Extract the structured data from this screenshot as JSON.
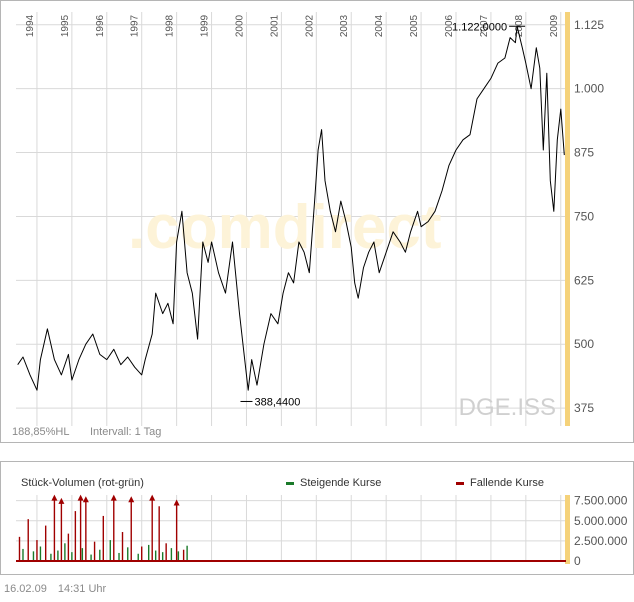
{
  "colors": {
    "price_line": "#000000",
    "grid": "#d9d9d9",
    "highlight": "#f5d27a",
    "volume_up": "#1a7a2a",
    "volume_down": "#a00000",
    "watermark": "#d0d0d0",
    "comdirect_watermark": "#fdf3d8"
  },
  "chart_data": [
    {
      "type": "line",
      "ticker": "DGE.ISS",
      "watermark": ".comdirect",
      "x_tick_labels": [
        "1994",
        "1995",
        "1996",
        "1997",
        "1998",
        "1999",
        "2000",
        "2001",
        "2002",
        "2003",
        "2004",
        "2005",
        "2006",
        "2007",
        "2008",
        "2009"
      ],
      "y_ticks": [
        375,
        500,
        625,
        750,
        875,
        1000,
        1125
      ],
      "y_tick_labels": [
        "375",
        "500",
        "625",
        "750",
        "875",
        "1.000",
        "1.125"
      ],
      "ylim": [
        340,
        1150
      ],
      "xlim": [
        1993.4,
        2009.15
      ],
      "info_left": "188,85%HL",
      "info_interval": "Intervall: 1 Tag",
      "annotations": [
        {
          "label": "1.122,0000",
          "x": 2007.75,
          "y": 1122,
          "kind": "high"
        },
        {
          "label": "388,4400",
          "x": 2000.0,
          "y": 388,
          "kind": "low"
        }
      ],
      "series": [
        {
          "x": [
            1993.45,
            1993.6,
            1993.8,
            1994.0,
            1994.1,
            1994.3,
            1994.5,
            1994.7,
            1994.9,
            1995.0,
            1995.2,
            1995.4,
            1995.6,
            1995.8,
            1996.0,
            1996.2,
            1996.4,
            1996.6,
            1996.8,
            1997.0,
            1997.1,
            1997.3,
            1997.4,
            1997.6,
            1997.75,
            1997.9,
            1998.0,
            1998.15,
            1998.3,
            1998.45,
            1998.6,
            1998.75,
            1998.9,
            1999.0,
            1999.2,
            1999.4,
            1999.6,
            1999.8,
            1999.95,
            2000.05,
            2000.15,
            2000.3,
            2000.5,
            2000.7,
            2000.9,
            2001.05,
            2001.2,
            2001.35,
            2001.5,
            2001.65,
            2001.8,
            2001.95,
            2002.05,
            2002.15,
            2002.25,
            2002.4,
            2002.55,
            2002.7,
            2002.85,
            2003.0,
            2003.1,
            2003.2,
            2003.35,
            2003.5,
            2003.65,
            2003.8,
            2004.0,
            2004.2,
            2004.4,
            2004.55,
            2004.7,
            2004.9,
            2005.0,
            2005.2,
            2005.4,
            2005.6,
            2005.8,
            2006.0,
            2006.2,
            2006.4,
            2006.6,
            2006.8,
            2007.0,
            2007.2,
            2007.4,
            2007.55,
            2007.7,
            2007.75,
            2007.9,
            2008.0,
            2008.15,
            2008.3,
            2008.4,
            2008.5,
            2008.6,
            2008.7,
            2008.8,
            2008.9,
            2009.0,
            2009.1
          ],
          "values": [
            460,
            475,
            440,
            410,
            470,
            530,
            470,
            440,
            480,
            430,
            470,
            500,
            520,
            480,
            470,
            490,
            460,
            475,
            455,
            440,
            470,
            520,
            600,
            560,
            580,
            540,
            700,
            760,
            640,
            600,
            510,
            700,
            660,
            700,
            640,
            600,
            700,
            560,
            470,
            410,
            470,
            420,
            500,
            560,
            540,
            600,
            640,
            620,
            700,
            680,
            640,
            780,
            880,
            920,
            820,
            760,
            720,
            780,
            740,
            690,
            620,
            590,
            650,
            680,
            700,
            640,
            680,
            720,
            700,
            680,
            720,
            760,
            730,
            740,
            760,
            800,
            850,
            880,
            900,
            910,
            980,
            1000,
            1020,
            1050,
            1060,
            1100,
            1090,
            1122,
            1080,
            1050,
            1000,
            1080,
            1040,
            880,
            1030,
            820,
            760,
            900,
            960,
            870
          ]
        }
      ]
    },
    {
      "type": "bar",
      "title": "Stück-Volumen (rot-grün)",
      "legend": [
        "Steigende Kurse",
        "Fallende Kurse"
      ],
      "y_ticks": [
        0,
        2500000,
        5000000,
        7500000
      ],
      "y_tick_labels": [
        "0",
        "2.500.000",
        "5.000.000",
        "7.500.000"
      ],
      "ylim": [
        0,
        8200000
      ],
      "xlim": [
        1993.4,
        2009.15
      ],
      "up_x": [
        1993.6,
        1993.9,
        1994.1,
        1994.4,
        1994.6,
        1994.8,
        1995.0,
        1995.3,
        1995.55,
        1995.8,
        1996.1,
        1996.35,
        1996.6,
        1996.9,
        1997.2,
        1997.4,
        1997.6,
        1997.85,
        1998.05,
        1998.3
      ],
      "up_values": [
        1500000,
        1200000,
        1800000,
        900000,
        1300000,
        2200000,
        1100000,
        1600000,
        800000,
        1400000,
        2600000,
        1000000,
        1700000,
        900000,
        2000000,
        1300000,
        1100000,
        1600000,
        1200000,
        1900000
      ],
      "down_x": [
        1993.5,
        1993.75,
        1994.0,
        1994.25,
        1994.5,
        1994.7,
        1994.9,
        1995.1,
        1995.25,
        1995.4,
        1995.65,
        1995.9,
        1996.2,
        1996.45,
        1996.7,
        1997.0,
        1997.3,
        1997.5,
        1997.7,
        1998.0,
        1998.2
      ],
      "down_values": [
        3000000,
        5200000,
        2600000,
        4400000,
        8000000,
        7600000,
        3400000,
        6200000,
        8000000,
        7800000,
        2400000,
        5600000,
        8000000,
        3600000,
        7800000,
        1800000,
        8000000,
        6800000,
        2200000,
        7400000,
        1400000
      ]
    }
  ],
  "footer": {
    "date": "16.02.09",
    "time": "14:31 Uhr"
  }
}
